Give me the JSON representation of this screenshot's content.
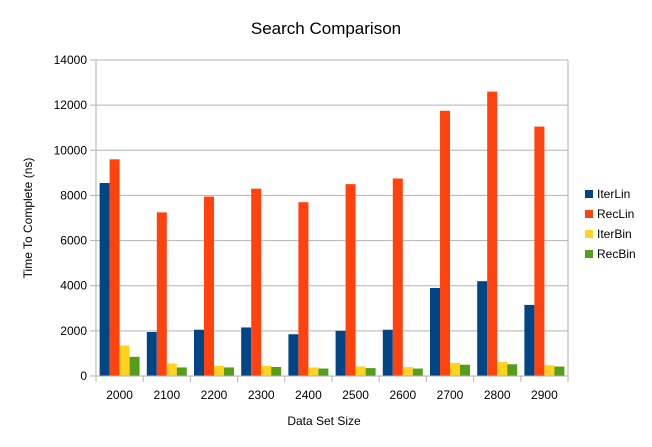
{
  "chart_data": {
    "type": "bar",
    "title": "Search Comparison",
    "xlabel": "Data Set Size",
    "ylabel": "Time To Complete (ns)",
    "ylim": [
      0,
      14000
    ],
    "yticks": [
      "0",
      "2000",
      "4000",
      "6000",
      "8000",
      "10000",
      "12000",
      "14000"
    ],
    "grid": true,
    "legend_position": "right",
    "categories": [
      "2000",
      "2100",
      "2200",
      "2300",
      "2400",
      "2500",
      "2600",
      "2700",
      "2800",
      "2900"
    ],
    "series": [
      {
        "name": "IterLin",
        "color": "#004586",
        "values": [
          8550,
          1950,
          2050,
          2150,
          1850,
          2000,
          2050,
          3900,
          4200,
          3150
        ]
      },
      {
        "name": "RecLin",
        "color": "#ff420e",
        "values": [
          9600,
          7250,
          7950,
          8300,
          7700,
          8500,
          8750,
          11750,
          12600,
          11050
        ]
      },
      {
        "name": "IterBin",
        "color": "#ffd320",
        "values": [
          1350,
          550,
          450,
          450,
          380,
          420,
          400,
          580,
          620,
          480
        ]
      },
      {
        "name": "RecBin",
        "color": "#579d1c",
        "values": [
          850,
          380,
          380,
          400,
          330,
          350,
          330,
          500,
          520,
          420
        ]
      }
    ]
  }
}
